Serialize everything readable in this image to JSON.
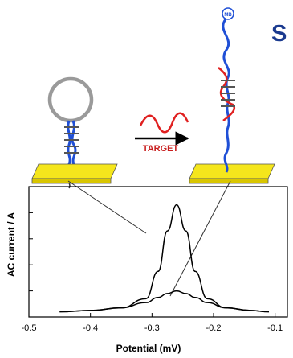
{
  "heading_fragment": "S",
  "diagram": {
    "reporter_label": "MB",
    "arrow_label": "TARGET",
    "colors": {
      "probe": "#1f4fd6",
      "loop": "#9a9a9a",
      "target": "#e02020",
      "electrode": "#f5e61c",
      "arrow_text": "#c81e1e",
      "heading": "#1a3a8f"
    }
  },
  "chart_data": {
    "type": "line",
    "xlabel": "Potential (mV)",
    "ylabel": "AC current / A",
    "xlim": [
      -0.5,
      -0.08
    ],
    "x_ticks": [
      "-0.5",
      "-0.4",
      "-0.3",
      "-0.2",
      "-0.1"
    ],
    "y_ticks": 5,
    "series": [
      {
        "values": [
          [
            -0.45,
            0.04
          ],
          [
            -0.4,
            0.05
          ],
          [
            -0.35,
            0.07
          ],
          [
            -0.31,
            0.14
          ],
          [
            -0.29,
            0.35
          ],
          [
            -0.275,
            0.66
          ],
          [
            -0.26,
            0.86
          ],
          [
            -0.245,
            0.66
          ],
          [
            -0.23,
            0.35
          ],
          [
            -0.21,
            0.14
          ],
          [
            -0.18,
            0.07
          ],
          [
            -0.14,
            0.05
          ],
          [
            -0.11,
            0.04
          ]
        ]
      },
      {
        "values": [
          [
            -0.45,
            0.04
          ],
          [
            -0.4,
            0.05
          ],
          [
            -0.35,
            0.07
          ],
          [
            -0.31,
            0.11
          ],
          [
            -0.29,
            0.15
          ],
          [
            -0.275,
            0.18
          ],
          [
            -0.26,
            0.2
          ],
          [
            -0.245,
            0.18
          ],
          [
            -0.23,
            0.15
          ],
          [
            -0.21,
            0.11
          ],
          [
            -0.18,
            0.07
          ],
          [
            -0.14,
            0.05
          ],
          [
            -0.11,
            0.04
          ]
        ]
      }
    ]
  }
}
